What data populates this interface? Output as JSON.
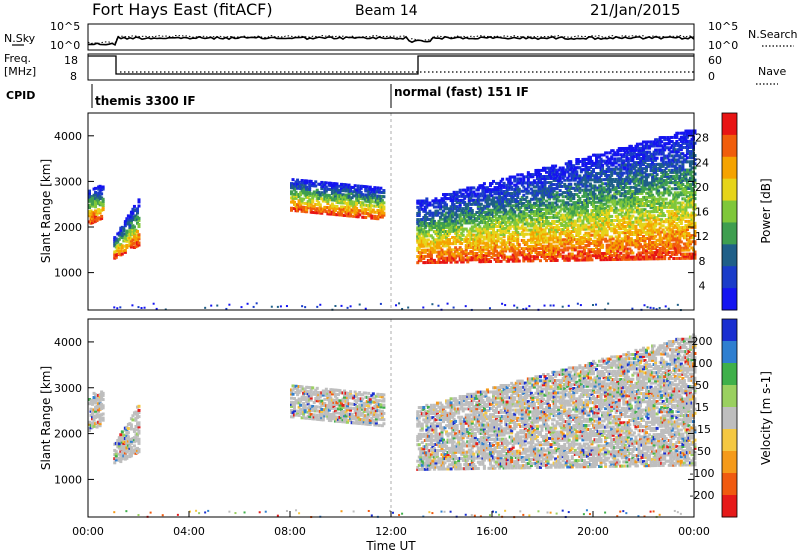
{
  "header": {
    "station": "Fort Hays East (fitACF)",
    "beam": "Beam 14",
    "date": "21/Jan/2015"
  },
  "strip": {
    "nsky_label": "N.Sky",
    "nsearch_label": "N.Search",
    "noise_ticks_left": [
      "10^5",
      "10^0"
    ],
    "noise_ticks_right": [
      "10^5",
      "10^0"
    ],
    "freq_label_top": "Freq.",
    "freq_label_bottom": "[MHz]",
    "freq_ticks": [
      "18",
      "8"
    ],
    "nave_label": "Nave",
    "nave_ticks": [
      "60",
      "0"
    ],
    "cpid_label": "CPID",
    "cpid_1": "themis 3300 IF",
    "cpid_2": "normal (fast) 151 IF"
  },
  "chart_data": [
    {
      "type": "heatmap",
      "quantity": "Power",
      "ylabel": "Slant Range [km]",
      "xlim": [
        0,
        24
      ],
      "ylim": [
        180,
        4500
      ],
      "yticks": [
        "4000",
        "3000",
        "2000",
        "1000"
      ],
      "colorbar_label": "Power [dB]",
      "colorbar_ticks": [
        "28",
        "24",
        "20",
        "16",
        "12",
        "8",
        "4"
      ],
      "colorbar_colors": [
        "#e81414",
        "#f05d0b",
        "#f5a300",
        "#e6d41a",
        "#7fc73a",
        "#3e9e4f",
        "#1f5f88",
        "#1a3cc9",
        "#1414f0"
      ],
      "scatter_regions": [
        {
          "t0": 0.0,
          "t1": 0.6,
          "r_low": [
            2100,
            2250
          ],
          "r_high": [
            2900,
            2950
          ]
        },
        {
          "t0": 1.0,
          "t1": 2.0,
          "r_low": [
            1350,
            1650
          ],
          "r_high": [
            1800,
            2700
          ]
        },
        {
          "t0": 8.0,
          "t1": 11.7,
          "r_low": [
            2400,
            2200
          ],
          "r_high": [
            3100,
            2900
          ]
        },
        {
          "t0": 13.0,
          "t1": 24.0,
          "r_low": [
            1250,
            1350
          ],
          "r_high": [
            2600,
            4200
          ]
        }
      ]
    },
    {
      "type": "heatmap",
      "quantity": "Velocity",
      "ylabel": "Slant Range [km]",
      "xlabel": "Time UT",
      "xlim": [
        0,
        24
      ],
      "ylim": [
        180,
        4500
      ],
      "xticks": [
        "00:00",
        "04:00",
        "08:00",
        "12:00",
        "16:00",
        "20:00",
        "00:00"
      ],
      "yticks": [
        "4000",
        "3000",
        "2000",
        "1000"
      ],
      "colorbar_label": "Velocity [m s-1]",
      "colorbar_ticks": [
        "200",
        "100",
        "50",
        "15",
        "-15",
        "-50",
        "-100",
        "-200"
      ],
      "colorbar_colors": [
        "#1a2fd0",
        "#2f7fd0",
        "#3fb04a",
        "#9ad060",
        "#bebebe",
        "#f5c842",
        "#f59a1a",
        "#f05a10",
        "#e61a1a"
      ],
      "scatter_regions": [
        {
          "t0": 0.0,
          "t1": 0.6,
          "r_low": [
            2100,
            2250
          ],
          "r_high": [
            2900,
            2950
          ]
        },
        {
          "t0": 1.0,
          "t1": 2.0,
          "r_low": [
            1350,
            1650
          ],
          "r_high": [
            1800,
            2700
          ]
        },
        {
          "t0": 8.0,
          "t1": 11.7,
          "r_low": [
            2400,
            2200
          ],
          "r_high": [
            3100,
            2900
          ]
        },
        {
          "t0": 13.0,
          "t1": 24.0,
          "r_low": [
            1250,
            1350
          ],
          "r_high": [
            2600,
            4200
          ]
        }
      ]
    }
  ]
}
